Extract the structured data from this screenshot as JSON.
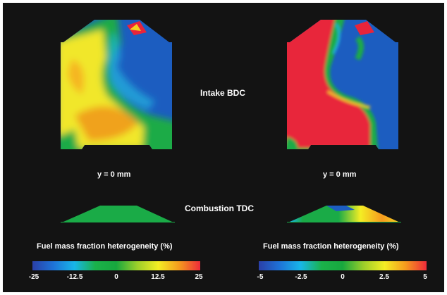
{
  "labels": {
    "intake": "Intake BDC",
    "combustion": "Combustion TDC",
    "left_plane": "y = 0 mm",
    "right_plane": "y = 0 mm"
  },
  "colorbars": [
    {
      "title": "Fuel mass fraction heterogeneity (%)",
      "ticks": [
        "-25",
        "-12.5",
        "0",
        "12.5",
        "25"
      ],
      "range": [
        -25,
        25
      ]
    },
    {
      "title": "Fuel mass fraction heterogeneity (%)",
      "ticks": [
        "-5",
        "-2.5",
        "0",
        "2.5",
        "5"
      ],
      "range": [
        -5,
        5
      ]
    }
  ],
  "colormap": [
    "#2a3fa8",
    "#1e73d8",
    "#18b6e8",
    "#1ab24a",
    "#18a83e",
    "#9ccf2a",
    "#f4ee24",
    "#f59a1e",
    "#ee2b3a"
  ]
}
